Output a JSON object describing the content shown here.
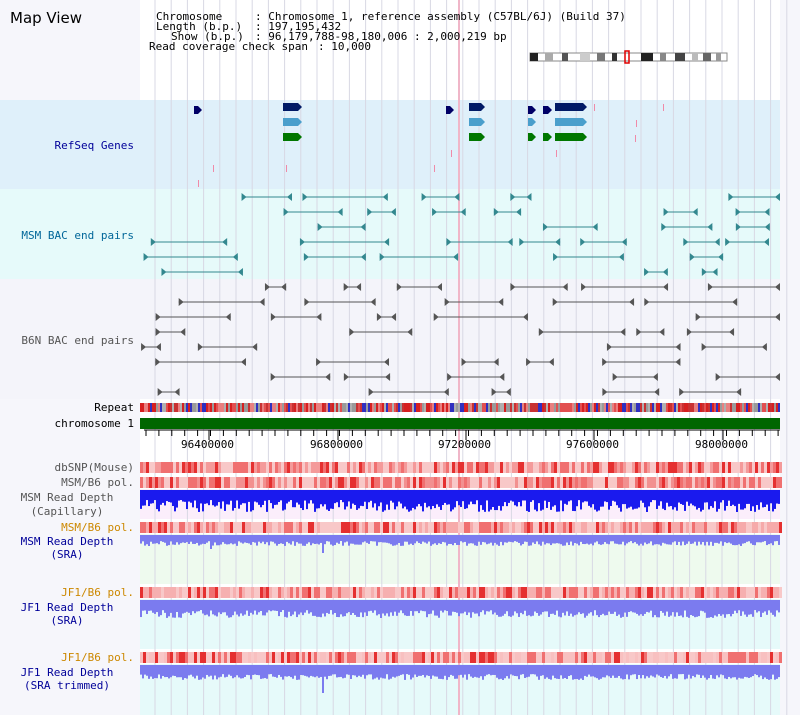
{
  "app": {
    "title": "Map View"
  },
  "header": {
    "chromosome_label": "Chromosome",
    "chromosome_value": ": Chromosome 1, reference assembly (C57BL/6J) (Build 37)",
    "length_label": "Length (b.p.)",
    "length_value": ": 197,195,432",
    "show_label": "Show (b.p.)",
    "show_value": ": 96,179,788-98,180,006 : 2,000,219 bp",
    "coverage_label": "Read coverage check span",
    "coverage_value": ": 10,000"
  },
  "tracks": {
    "refseq": "RefSeq Genes",
    "msm_bac": "MSM BAC end pairs",
    "b6n_bac": "B6N BAC end pairs",
    "repeat": "Repeat",
    "chromosome": "chromosome 1",
    "dbsnp": "dbSNP(Mouse)",
    "msm_b6_pol_1": "MSM/B6 pol.",
    "msm_depth_cap_1": "MSM Read Depth",
    "msm_depth_cap_2": "(Capillary)",
    "msm_b6_pol_2": "MSM/B6 pol.",
    "msm_depth_sra_1": "MSM Read Depth",
    "msm_depth_sra_2": "(SRA)",
    "jf1_b6_pol_1": "JF1/B6 pol.",
    "jf1_depth_sra_1": "JF1 Read Depth",
    "jf1_depth_sra_2": "(SRA)",
    "jf1_b6_pol_2": "JF1/B6 pol.",
    "jf1_depth_trim_1": "JF1 Read Depth",
    "jf1_depth_trim_2": "(SRA trimmed)"
  },
  "axis": {
    "ticks": [
      "96400000",
      "96800000",
      "97200000",
      "97600000",
      "98000000"
    ]
  },
  "colors": {
    "refseq_bg": "#dff0fa",
    "bac_bg": "#e6fafa",
    "label_blue": "#000099",
    "label_teal": "#006699",
    "label_orange": "#cc8800",
    "label_grey": "#555555",
    "chromosome_bar": "#006600",
    "depth_blue": "#1a1aee",
    "depth_light": "#7b7bef"
  }
}
